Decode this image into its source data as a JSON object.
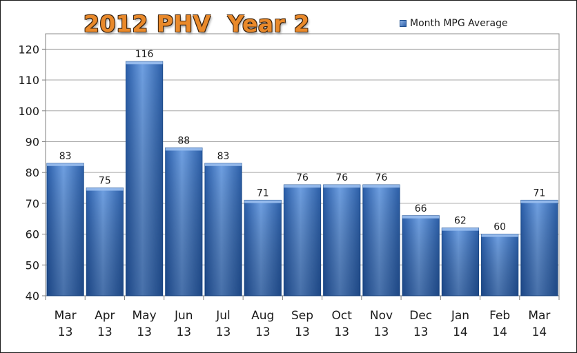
{
  "chart_data": {
    "type": "bar",
    "title": "2012 PHV  Year 2",
    "xlabel": "",
    "ylabel": "",
    "ylim": [
      40,
      125
    ],
    "yticks": [
      40,
      50,
      60,
      70,
      80,
      90,
      100,
      110,
      120
    ],
    "grid": true,
    "legend_position": "top-right",
    "categories": [
      [
        "Mar",
        "13"
      ],
      [
        "Apr",
        "13"
      ],
      [
        "May",
        "13"
      ],
      [
        "Jun",
        "13"
      ],
      [
        "Jul",
        "13"
      ],
      [
        "Aug",
        "13"
      ],
      [
        "Sep",
        "13"
      ],
      [
        "Oct",
        "13"
      ],
      [
        "Nov",
        "13"
      ],
      [
        "Dec",
        "13"
      ],
      [
        "Jan",
        "14"
      ],
      [
        "Feb",
        "14"
      ],
      [
        "Mar",
        "14"
      ]
    ],
    "series": [
      {
        "name": "Month MPG Average",
        "values": [
          83,
          75,
          116,
          88,
          83,
          71,
          76,
          76,
          76,
          66,
          62,
          60,
          71
        ]
      }
    ],
    "colors": {
      "bar_light": "#6f9fe0",
      "bar_mid": "#3b74c8",
      "bar_dark": "#1f4f98",
      "title": "#e9892a"
    }
  }
}
